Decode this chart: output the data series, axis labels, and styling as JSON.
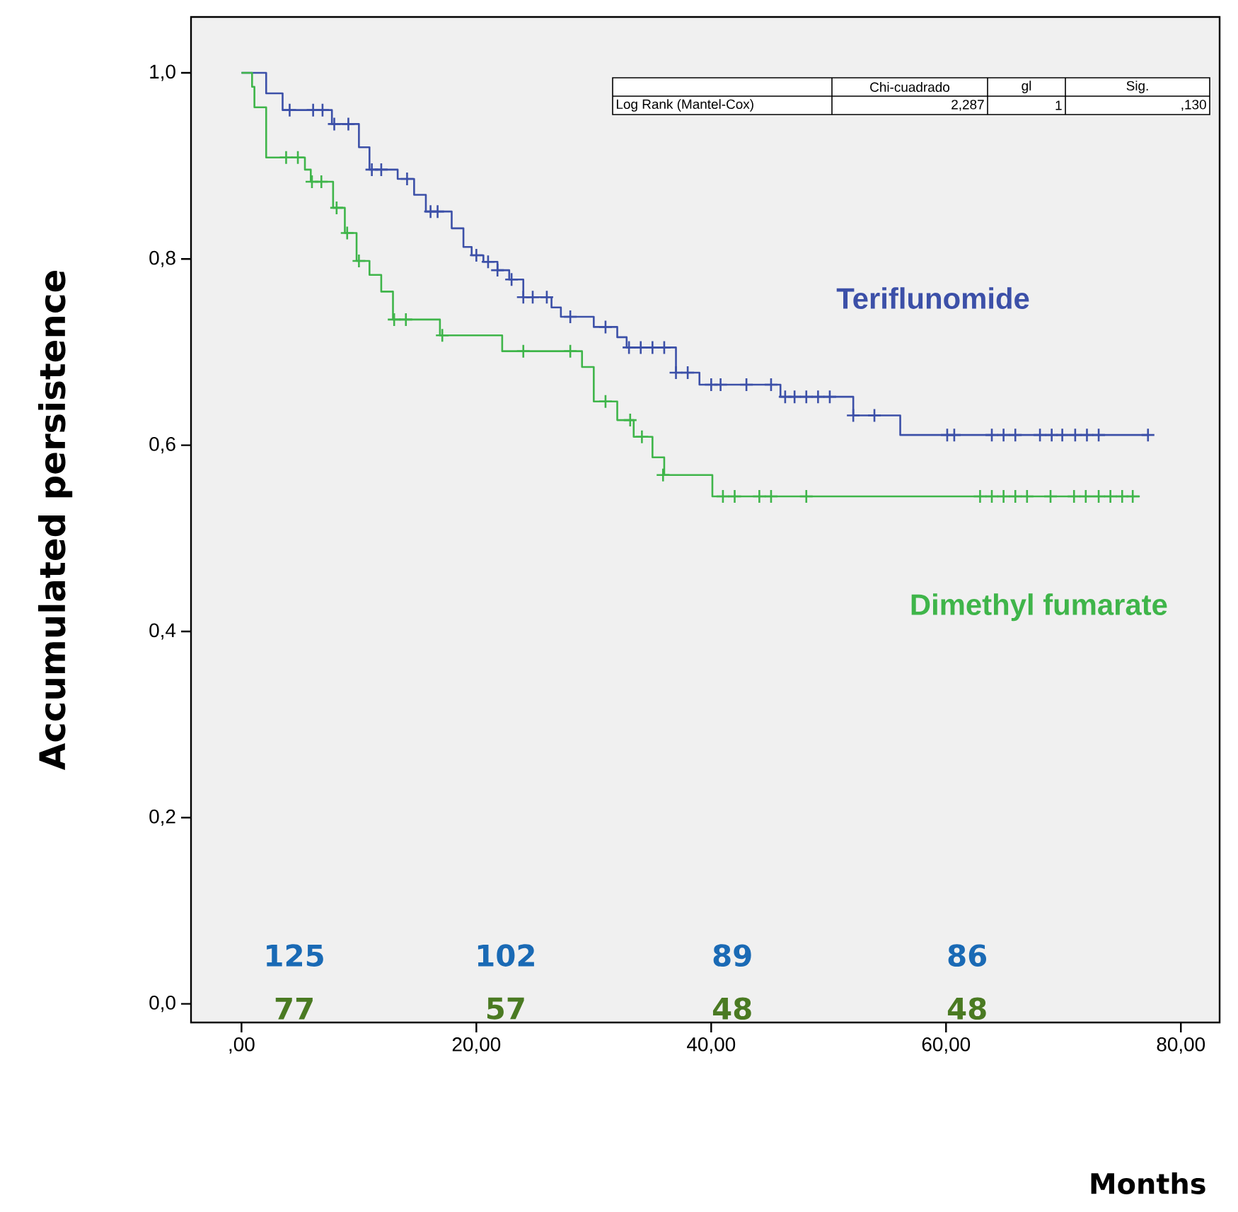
{
  "chart_data": {
    "type": "step",
    "xlabel": "Months",
    "ylabel": "Accumulated  persistence",
    "xlim": [
      -4.3,
      83.3
    ],
    "ylim": [
      -0.02,
      1.06
    ],
    "xticks": [
      {
        "value": 0,
        "label": ",00"
      },
      {
        "value": 20,
        "label": "20,00"
      },
      {
        "value": 40,
        "label": "40,00"
      },
      {
        "value": 60,
        "label": "60,00"
      },
      {
        "value": 80,
        "label": "80,00"
      }
    ],
    "yticks": [
      {
        "value": 0,
        "label": "0,0"
      },
      {
        "value": 0.2,
        "label": "0,2"
      },
      {
        "value": 0.4,
        "label": "0,4"
      },
      {
        "value": 0.6,
        "label": "0,6"
      },
      {
        "value": 0.8,
        "label": "0,8"
      },
      {
        "value": 1.0,
        "label": "1,0"
      }
    ],
    "grid": false,
    "legend": false,
    "series": [
      {
        "name": "Teriflunomide",
        "color": "#3c50a8",
        "marker": "none",
        "x": [
          0,
          2.1,
          3.5,
          7.7,
          10.0,
          10.9,
          13.3,
          14.7,
          15.7,
          17.9,
          18.9,
          19.6,
          20.6,
          21.8,
          22.8,
          24.0,
          26.4,
          27.2,
          30.0,
          32.0,
          32.8,
          37.0,
          39.0,
          45.9,
          52.1,
          56.1,
          77.2
        ],
        "values": [
          1.0,
          0.978,
          0.96,
          0.945,
          0.92,
          0.896,
          0.886,
          0.869,
          0.851,
          0.833,
          0.813,
          0.804,
          0.797,
          0.788,
          0.778,
          0.759,
          0.748,
          0.738,
          0.727,
          0.716,
          0.705,
          0.678,
          0.665,
          0.652,
          0.632,
          0.611,
          0.611
        ]
      },
      {
        "name": "Dimethyl fumarate",
        "color": "#3fb54a",
        "marker": "none",
        "x": [
          0,
          0.9,
          1.1,
          2.1,
          5.4,
          5.9,
          7.8,
          8.8,
          9.8,
          10.9,
          11.9,
          12.9,
          16.9,
          22.2,
          29.0,
          30.0,
          32.0,
          33.4,
          35.0,
          36.0,
          40.1,
          76.5
        ],
        "values": [
          1.0,
          0.985,
          0.963,
          0.909,
          0.896,
          0.883,
          0.855,
          0.828,
          0.798,
          0.783,
          0.765,
          0.735,
          0.718,
          0.701,
          0.684,
          0.647,
          0.627,
          0.609,
          0.587,
          0.568,
          0.545,
          0.545
        ]
      },
      {
        "type": "scatter",
        "color": "#3c50a8",
        "marker": "cross",
        "x": [
          4.1,
          6.1,
          6.9,
          7.9,
          9.1,
          11.1,
          11.9,
          14.1,
          16.1,
          16.7,
          20.0,
          21.0,
          21.8,
          23.0,
          24.0,
          24.8,
          26.0,
          28.0,
          31.0,
          33.0,
          34.0,
          35.0,
          36.0,
          37.0,
          38.0,
          40.0,
          40.8,
          43.0,
          45.1,
          46.3,
          47.1,
          48.1,
          49.1,
          50.1,
          52.1,
          53.9,
          60.1,
          60.7,
          63.9,
          64.9,
          65.9,
          68.0,
          69.0,
          69.9,
          71.0,
          72.0,
          73.0,
          77.2
        ],
        "values": [
          0.96,
          0.96,
          0.96,
          0.945,
          0.945,
          0.896,
          0.896,
          0.886,
          0.851,
          0.851,
          0.804,
          0.797,
          0.788,
          0.778,
          0.759,
          0.759,
          0.759,
          0.738,
          0.727,
          0.705,
          0.705,
          0.705,
          0.705,
          0.678,
          0.678,
          0.665,
          0.665,
          0.665,
          0.665,
          0.652,
          0.652,
          0.652,
          0.652,
          0.652,
          0.632,
          0.632,
          0.611,
          0.611,
          0.611,
          0.611,
          0.611,
          0.611,
          0.611,
          0.611,
          0.611,
          0.611,
          0.611,
          0.611
        ]
      },
      {
        "type": "scatter",
        "color": "#3fb54a",
        "marker": "cross",
        "x": [
          3.8,
          4.8,
          6.0,
          6.8,
          8.1,
          9.0,
          10.0,
          13.0,
          14.0,
          17.1,
          24.0,
          28.0,
          31.0,
          33.1,
          34.1,
          35.9,
          41.0,
          42.0,
          44.1,
          45.1,
          48.1,
          62.9,
          63.9,
          64.9,
          65.9,
          66.9,
          68.9,
          70.9,
          71.9,
          73.0,
          74.0,
          75.0,
          75.9
        ],
        "values": [
          0.909,
          0.909,
          0.883,
          0.883,
          0.855,
          0.828,
          0.798,
          0.735,
          0.735,
          0.718,
          0.701,
          0.701,
          0.647,
          0.627,
          0.609,
          0.568,
          0.545,
          0.545,
          0.545,
          0.545,
          0.545,
          0.545,
          0.545,
          0.545,
          0.545,
          0.545,
          0.545,
          0.545,
          0.545,
          0.545,
          0.545,
          0.545,
          0.545
        ]
      }
    ],
    "annotations": [
      "Chi-cuadrado",
      "gl",
      "Sig.",
      "Log Rank (Mantel-Cox)",
      "2,287",
      "1",
      ",130",
      "125",
      "102",
      "89",
      "86",
      "77",
      "57",
      "48",
      "48"
    ]
  }
}
